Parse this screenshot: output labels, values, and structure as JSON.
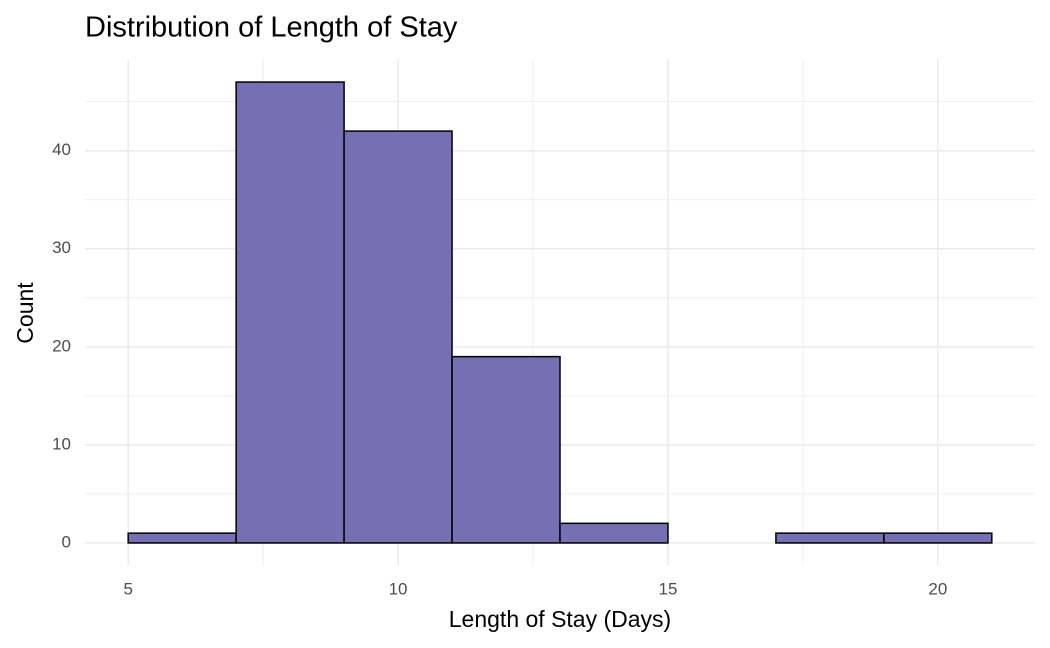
{
  "chart_data": {
    "type": "histogram",
    "title": "Distribution of Length of Stay",
    "x_label": "Length of Stay (Days)",
    "y_label": "Count",
    "bins": [
      5,
      7,
      9,
      11,
      13,
      15,
      17,
      19,
      21
    ],
    "values": [
      1,
      47,
      42,
      19,
      2,
      0,
      1,
      1
    ],
    "color": "#7570b3",
    "edgecolor": "#000000",
    "xlim": [
      4.2,
      21.8
    ],
    "xticks": [
      5,
      10,
      15,
      20
    ],
    "xminor": [
      7.5,
      12.5,
      17.5
    ],
    "ylim": [
      -2.35,
      49.35
    ],
    "yticks": [
      0,
      10,
      20,
      30,
      40
    ],
    "yminor": [
      5,
      15,
      25,
      35,
      45
    ],
    "grid": true
  }
}
